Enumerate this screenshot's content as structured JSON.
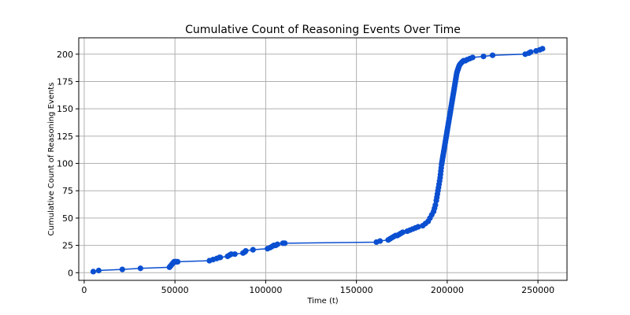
{
  "colors": {
    "series": "#0b4fd1",
    "grid": "#b0b0b0"
  },
  "chart_data": {
    "type": "line",
    "title": "Cumulative Count of Reasoning Events Over Time",
    "xlabel": "Time (t)",
    "ylabel": "Cumulative Count of Reasoning Events",
    "xlim": [
      -3000,
      266000
    ],
    "ylim": [
      -7,
      215
    ],
    "xticks": [
      0,
      50000,
      100000,
      150000,
      200000,
      250000
    ],
    "xtick_labels": [
      "0",
      "50000",
      "100000",
      "150000",
      "200000",
      "250000"
    ],
    "yticks": [
      0,
      25,
      50,
      75,
      100,
      125,
      150,
      175,
      200
    ],
    "ytick_labels": [
      "0",
      "25",
      "50",
      "75",
      "100",
      "125",
      "150",
      "175",
      "200"
    ],
    "grid": true,
    "series": [
      {
        "marker": "circle",
        "x": [
          5000,
          8000,
          21000,
          31000,
          47000,
          47500,
          48000,
          48500,
          49000,
          49500,
          50000,
          50500,
          51000,
          51500,
          69000,
          71000,
          73000,
          74500,
          75000,
          79000,
          80000,
          81000,
          83000,
          87500,
          88500,
          89000,
          93000,
          101000,
          102500,
          103500,
          104500,
          105500,
          106500,
          109500,
          110500,
          161000,
          163000,
          167500,
          168500,
          169500,
          170500,
          171500,
          172500,
          173500,
          174500,
          175500,
          178000,
          179500,
          181000,
          182500,
          184000,
          186500,
          188000,
          189500,
          190500,
          191500,
          192500,
          193000,
          193500,
          194000,
          194300,
          194600,
          194900,
          195200,
          195500,
          195800,
          196100,
          196300,
          196500,
          196700,
          196900,
          197100,
          197300,
          197500,
          197700,
          197900,
          198100,
          198300,
          198500,
          198700,
          198900,
          199100,
          199300,
          199500,
          199700,
          199900,
          200100,
          200300,
          200500,
          200700,
          200900,
          201100,
          201300,
          201500,
          201700,
          201900,
          202100,
          202300,
          202500,
          202700,
          202900,
          203100,
          203300,
          203500,
          203700,
          203900,
          204100,
          204300,
          204500,
          204700,
          204900,
          205100,
          205300,
          205500,
          205700,
          205900,
          206100,
          206300,
          206500,
          206800,
          207200,
          207700,
          208300,
          209000,
          210000,
          211000,
          212500,
          214000,
          220000,
          225000,
          243000,
          245000,
          246000,
          249000,
          251000,
          252500
        ],
        "y": [
          1,
          2,
          3,
          4,
          5,
          6,
          7,
          8,
          9,
          10,
          10,
          10,
          10,
          10,
          11,
          12,
          13,
          14,
          14,
          15,
          16,
          17,
          17,
          18,
          19,
          20,
          21,
          22,
          23,
          24,
          25,
          25,
          26,
          27,
          27,
          28,
          29,
          30,
          31,
          32,
          33,
          34,
          34,
          35,
          36,
          37,
          38,
          39,
          40,
          41,
          42,
          43,
          45,
          47,
          50,
          53,
          56,
          59,
          62,
          66,
          69,
          72,
          75,
          78,
          81,
          84,
          87,
          90,
          93,
          96,
          99,
          101,
          103,
          105,
          107,
          109,
          111,
          113,
          115,
          117,
          119,
          121,
          123,
          125,
          127,
          129,
          131,
          133,
          135,
          137,
          139,
          141,
          143,
          145,
          147,
          149,
          151,
          153,
          155,
          157,
          159,
          161,
          163,
          165,
          167,
          169,
          171,
          173,
          175,
          177,
          179,
          181,
          183,
          184,
          185,
          186,
          187,
          188,
          189,
          190,
          191,
          192,
          193,
          194,
          194,
          195,
          196,
          197,
          198,
          199,
          200,
          201,
          202,
          203,
          204,
          205
        ]
      }
    ]
  }
}
